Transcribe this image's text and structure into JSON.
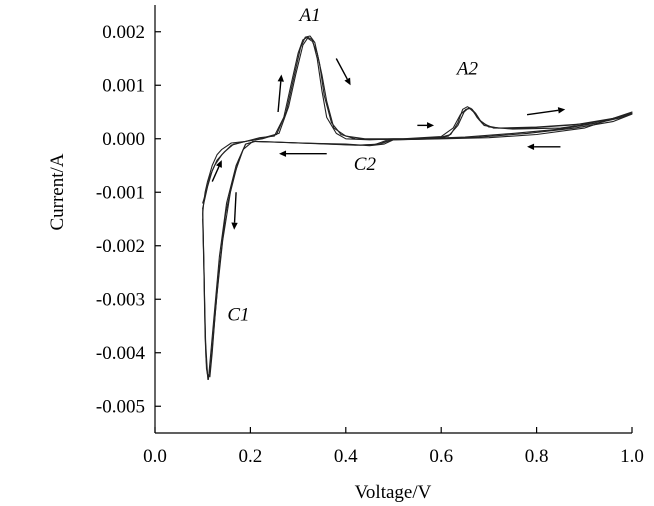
{
  "chart_data": {
    "type": "line",
    "title": "",
    "xlabel": "Voltage/V",
    "ylabel": "Current/A",
    "xlim": [
      0.0,
      1.0
    ],
    "ylim": [
      -0.0055,
      0.0025
    ],
    "x_ticks": [
      "0.0",
      "0.2",
      "0.4",
      "0.6",
      "0.8",
      "1.0"
    ],
    "x_tick_values": [
      0.0,
      0.2,
      0.4,
      0.6,
      0.8,
      1.0
    ],
    "y_ticks": [
      "0.002",
      "0.001",
      "0.000",
      "-0.001",
      "-0.002",
      "-0.003",
      "-0.004",
      "-0.005"
    ],
    "y_tick_values": [
      0.002,
      0.001,
      0.0,
      -0.001,
      -0.002,
      -0.003,
      -0.004,
      -0.005
    ],
    "grid": false,
    "annotations": [
      {
        "text": "A1",
        "x": 0.325,
        "y": 0.0022
      },
      {
        "text": "A2",
        "x": 0.655,
        "y": 0.0012
      },
      {
        "text": "C1",
        "x": 0.175,
        "y": -0.0034
      },
      {
        "text": "C2",
        "x": 0.44,
        "y": -0.00058
      }
    ],
    "series": [
      {
        "x": [
          0.1,
          0.102,
          0.105,
          0.11,
          0.115,
          0.12,
          0.13,
          0.14,
          0.16,
          0.19,
          0.22,
          0.25,
          0.27,
          0.285,
          0.3,
          0.31,
          0.32,
          0.33,
          0.34,
          0.35,
          0.36,
          0.38,
          0.4,
          0.45,
          0.5,
          0.55,
          0.6,
          0.62,
          0.635,
          0.645,
          0.655,
          0.665,
          0.675,
          0.69,
          0.72,
          0.8,
          0.9,
          0.95,
          0.98,
          1.0,
          0.95,
          0.9,
          0.8,
          0.7,
          0.6,
          0.5,
          0.48,
          0.45,
          0.4,
          0.35,
          0.3,
          0.25,
          0.21,
          0.19,
          0.17,
          0.15,
          0.135,
          0.125,
          0.117,
          0.112,
          0.108,
          0.105,
          0.103,
          0.1
        ],
        "y": [
          -0.0014,
          -0.0012,
          -0.001,
          -0.0008,
          -0.00065,
          -0.0005,
          -0.0003,
          -0.0002,
          -8e-05,
          -5e-05,
          2e-05,
          5e-05,
          0.0004,
          0.001,
          0.0016,
          0.00185,
          0.0019,
          0.00185,
          0.0015,
          0.0009,
          0.0004,
          0.0001,
          0.0,
          -2e-05,
          0.0,
          0.0,
          3e-05,
          8e-05,
          0.0003,
          0.00055,
          0.0006,
          0.00055,
          0.0004,
          0.00025,
          0.0002,
          0.00022,
          0.00028,
          0.00035,
          0.00042,
          0.0005,
          0.00035,
          0.0002,
          8e-05,
          2e-05,
          0.0,
          -2e-05,
          -0.0001,
          -0.00013,
          -0.0001,
          -9e-05,
          -8e-05,
          -6e-05,
          -5e-05,
          -0.0001,
          -0.0005,
          -0.0012,
          -0.0022,
          -0.0032,
          -0.004,
          -0.0045,
          -0.0043,
          -0.0037,
          -0.0025,
          -0.0014
        ]
      },
      {
        "x": [
          0.1,
          0.105,
          0.11,
          0.12,
          0.13,
          0.145,
          0.165,
          0.195,
          0.225,
          0.255,
          0.275,
          0.29,
          0.305,
          0.315,
          0.325,
          0.335,
          0.345,
          0.355,
          0.37,
          0.39,
          0.42,
          0.5,
          0.58,
          0.615,
          0.635,
          0.648,
          0.658,
          0.668,
          0.68,
          0.7,
          0.75,
          0.85,
          0.93,
          0.98,
          1.0,
          0.93,
          0.85,
          0.75,
          0.65,
          0.55,
          0.49,
          0.46,
          0.42,
          0.36,
          0.3,
          0.24,
          0.205,
          0.185,
          0.165,
          0.148,
          0.135,
          0.126,
          0.12,
          0.115,
          0.11,
          0.106,
          0.103,
          0.1
        ],
        "y": [
          -0.0013,
          -0.0011,
          -0.0009,
          -0.0006,
          -0.0004,
          -0.00025,
          -0.0001,
          -4e-05,
          0.0,
          8e-05,
          0.0005,
          0.0011,
          0.0017,
          0.0019,
          0.00192,
          0.0018,
          0.0014,
          0.0008,
          0.0003,
          8e-05,
          0.0,
          -2e-05,
          0.0,
          5e-05,
          0.00025,
          0.0005,
          0.00058,
          0.0005,
          0.00035,
          0.00022,
          0.00018,
          0.0002,
          0.0003,
          0.0004,
          0.00048,
          0.0003,
          0.00018,
          0.0001,
          3e-05,
          0.0,
          -2e-05,
          -0.00011,
          -0.00012,
          -0.0001,
          -8e-05,
          -6e-05,
          -5e-05,
          -0.0002,
          -0.0007,
          -0.0014,
          -0.0024,
          -0.0033,
          -0.004,
          -0.00445,
          -0.0044,
          -0.0038,
          -0.0026,
          -0.0015
        ]
      },
      {
        "x": [
          0.1,
          0.107,
          0.115,
          0.125,
          0.14,
          0.16,
          0.19,
          0.22,
          0.26,
          0.28,
          0.295,
          0.31,
          0.32,
          0.33,
          0.34,
          0.35,
          0.36,
          0.375,
          0.4,
          0.44,
          0.52,
          0.6,
          0.625,
          0.64,
          0.652,
          0.662,
          0.672,
          0.685,
          0.71,
          0.78,
          0.88,
          0.96,
          1.0,
          0.96,
          0.88,
          0.78,
          0.68,
          0.58,
          0.5,
          0.47,
          0.43,
          0.37,
          0.31,
          0.25,
          0.21,
          0.19,
          0.175,
          0.158,
          0.142,
          0.13,
          0.122,
          0.116,
          0.111,
          0.107,
          0.104,
          0.102,
          0.1
        ],
        "y": [
          -0.0012,
          -0.001,
          -0.0007,
          -0.0005,
          -0.0003,
          -0.00012,
          -5e-05,
          0.0,
          0.0001,
          0.0006,
          0.0012,
          0.00175,
          0.00188,
          0.00182,
          0.0016,
          0.0012,
          0.0007,
          0.0002,
          5e-05,
          0.0,
          0.0,
          4e-05,
          0.0002,
          0.00045,
          0.00055,
          0.00057,
          0.00048,
          0.0003,
          0.0002,
          0.0002,
          0.00026,
          0.00038,
          0.00046,
          0.00032,
          0.0002,
          0.0001,
          3e-05,
          0.0,
          -1e-05,
          -0.0001,
          -0.00012,
          -0.0001,
          -8e-05,
          -6e-05,
          -5e-05,
          -0.0001,
          -0.0004,
          -0.001,
          -0.0019,
          -0.0029,
          -0.0037,
          -0.0043,
          -0.0045,
          -0.0041,
          -0.0032,
          -0.0022,
          -0.0013
        ]
      }
    ],
    "direction_arrows": [
      {
        "from": [
          0.12,
          -0.0008
        ],
        "to": [
          0.14,
          -0.0004
        ]
      },
      {
        "from": [
          0.17,
          -0.001
        ],
        "to": [
          0.166,
          -0.0017
        ]
      },
      {
        "from": [
          0.258,
          0.0005
        ],
        "to": [
          0.265,
          0.0012
        ]
      },
      {
        "from": [
          0.38,
          0.0015
        ],
        "to": [
          0.41,
          0.001
        ]
      },
      {
        "from": [
          0.55,
          0.00025
        ],
        "to": [
          0.585,
          0.00025
        ]
      },
      {
        "from": [
          0.78,
          0.00045
        ],
        "to": [
          0.86,
          0.00055
        ]
      },
      {
        "from": [
          0.85,
          -0.00015
        ],
        "to": [
          0.78,
          -0.00015
        ]
      },
      {
        "from": [
          0.36,
          -0.00028
        ],
        "to": [
          0.26,
          -0.00028
        ]
      }
    ]
  }
}
